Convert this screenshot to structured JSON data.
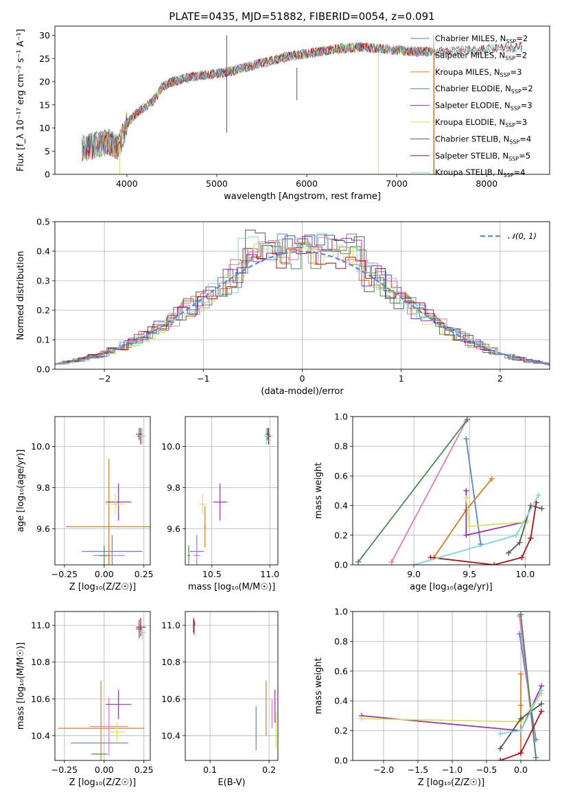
{
  "title": "PLATE=0435, MJD=51882, FIBERID=0054, z=0.091",
  "colors": {
    "chabrier_miles": "#5b7fd6",
    "salpeter_miles": "#e377c2",
    "kroupa_miles": "#e07a1f",
    "chabrier_elodie": "#4e8a55",
    "salpeter_elodie": "#9b2fae",
    "kroupa_elodie": "#d7e35a",
    "chabrier_stelib": "#555555",
    "salpeter_stelib": "#b20f16",
    "kroupa_stelib": "#7dd6d8",
    "gauss": "#5b8ad8"
  },
  "chart_data": [
    {
      "id": "spectrum",
      "type": "line",
      "xlabel": "wavelength [Angstrom, rest frame]",
      "ylabel": "Flux [f_λ 10⁻¹⁷ erg cm⁻² s⁻¹ A⁻¹]",
      "xlim": [
        3200,
        8700
      ],
      "ylim": [
        0,
        32
      ],
      "xticks": [
        "4000",
        "5000",
        "6000",
        "7000",
        "8000"
      ],
      "yticks": [
        "0",
        "5",
        "10",
        "15",
        "20",
        "25",
        "30"
      ],
      "legend_position": "top-right",
      "legend": [
        {
          "text": "Chabrier MILES, N",
          "sub": "SSP",
          "suffix": "=2"
        },
        {
          "text": "Salpeter MILES, N",
          "sub": "SSP",
          "suffix": "=2"
        },
        {
          "text": "Kroupa MILES, N",
          "sub": "SSP",
          "suffix": "=3"
        },
        {
          "text": "Chabrier ELODIE, N",
          "sub": "SSP",
          "suffix": "=2"
        },
        {
          "text": "Salpeter ELODIE, N",
          "sub": "SSP",
          "suffix": "=3"
        },
        {
          "text": "Kroupa ELODIE, N",
          "sub": "SSP",
          "suffix": "=3"
        },
        {
          "text": "Chabrier STELIB, N",
          "sub": "SSP",
          "suffix": "=4"
        },
        {
          "text": "Salpeter STELIB, N",
          "sub": "SSP",
          "suffix": "=5"
        },
        {
          "text": "Kroupa STELIB, N",
          "sub": "SSP",
          "suffix": "=4"
        }
      ],
      "continuum": {
        "x": [
          3500,
          3600,
          3700,
          3800,
          3900,
          3950,
          4000,
          4100,
          4200,
          4300,
          4400,
          4500,
          4700,
          4900,
          5100,
          5300,
          5500,
          5800,
          6000,
          6300,
          6600,
          6900,
          7200,
          7400,
          7600,
          8000,
          8400
        ],
        "y": [
          5.5,
          6,
          6.5,
          7,
          5.5,
          8,
          11,
          13,
          14.5,
          16,
          19,
          20,
          21,
          21.5,
          22,
          23,
          24,
          25.5,
          26,
          27,
          27.5,
          27,
          26.5,
          26.5,
          26.5,
          27,
          27.5
        ]
      }
    },
    {
      "id": "residuals",
      "type": "histogram",
      "xlabel": "(data-model)/error",
      "ylabel": "Normed distribution",
      "xlim": [
        -2.5,
        2.5
      ],
      "ylim": [
        0,
        0.5
      ],
      "xticks": [
        "−2",
        "−1",
        "0",
        "1",
        "2"
      ],
      "yticks": [
        "0.0",
        "0.1",
        "0.2",
        "0.3",
        "0.4",
        "0.5"
      ],
      "legend_position": "top-right",
      "gauss_label": "𝒩(0, 1)",
      "bin_width": 0.1,
      "peak_values": [
        0.46,
        0.45,
        0.44,
        0.42,
        0.45,
        0.43,
        0.48,
        0.4,
        0.47
      ]
    },
    {
      "id": "age_vs_Z",
      "type": "scatter",
      "xlabel": "Z [log₁₀(Z/Z☉)]",
      "ylabel": "age  [log₁₀(age/yr)]",
      "xlim": [
        -0.31,
        0.29
      ],
      "ylim": [
        9.425,
        10.145
      ],
      "xticks": [
        "−0.25",
        "0.00",
        "0.25"
      ],
      "yticks": [
        "9.6",
        "9.8",
        "10.0"
      ],
      "points": [
        {
          "series": "chabrier_miles",
          "x": 0.05,
          "y": 9.49,
          "xerr": 0.19,
          "yerr": 0.08
        },
        {
          "series": "salpeter_miles",
          "x": 0.03,
          "y": 9.47,
          "xerr": 0.1,
          "yerr": 0.05
        },
        {
          "series": "kroupa_miles",
          "x": 0.03,
          "y": 9.61,
          "xerr": 0.27,
          "yerr": 0.33
        },
        {
          "series": "chabrier_elodie",
          "x": 0.0,
          "y": 9.47,
          "xerr": 0.03,
          "yerr": 0.05
        },
        {
          "series": "salpeter_elodie",
          "x": 0.09,
          "y": 9.73,
          "xerr": 0.08,
          "yerr": 0.09
        },
        {
          "series": "kroupa_elodie",
          "x": 0.07,
          "y": 9.72,
          "xerr": 0.06,
          "yerr": 0.05
        },
        {
          "series": "chabrier_stelib",
          "x": 0.22,
          "y": 10.06,
          "xerr": 0.02,
          "yerr": 0.03
        },
        {
          "series": "salpeter_stelib",
          "x": 0.23,
          "y": 10.05,
          "xerr": 0.02,
          "yerr": 0.04
        },
        {
          "series": "kroupa_stelib",
          "x": 0.24,
          "y": 10.05,
          "xerr": 0.02,
          "yerr": 0.04
        }
      ]
    },
    {
      "id": "age_vs_mass",
      "type": "scatter",
      "xlabel": "mass [log₁₀(M/M☉)]",
      "ylabel": "",
      "xlim": [
        10.27,
        11.07
      ],
      "ylim": [
        9.425,
        10.145
      ],
      "xticks": [
        "10.5",
        "11.0"
      ],
      "yticks": [
        "9.6",
        "9.8",
        "10.0"
      ],
      "points": [
        {
          "series": "chabrier_miles",
          "x": 10.37,
          "y": 9.49,
          "xerr": 0.06,
          "yerr": 0.08
        },
        {
          "series": "salpeter_miles",
          "x": 10.37,
          "y": 9.47,
          "xerr": 0.03,
          "yerr": 0.05
        },
        {
          "series": "kroupa_miles",
          "x": 10.44,
          "y": 9.61,
          "xerr": 0.01,
          "yerr": 0.1
        },
        {
          "series": "chabrier_elodie",
          "x": 10.3,
          "y": 9.47,
          "xerr": 0.01,
          "yerr": 0.05
        },
        {
          "series": "salpeter_elodie",
          "x": 10.57,
          "y": 9.73,
          "xerr": 0.06,
          "yerr": 0.09
        },
        {
          "series": "kroupa_elodie",
          "x": 10.42,
          "y": 9.72,
          "xerr": 0.03,
          "yerr": 0.05
        },
        {
          "series": "chabrier_stelib",
          "x": 10.98,
          "y": 10.06,
          "xerr": 0.02,
          "yerr": 0.03
        },
        {
          "series": "salpeter_stelib",
          "x": 10.99,
          "y": 10.05,
          "xerr": 0.02,
          "yerr": 0.04
        },
        {
          "series": "kroupa_stelib",
          "x": 10.97,
          "y": 10.05,
          "xerr": 0.02,
          "yerr": 0.04
        }
      ]
    },
    {
      "id": "weight_vs_age",
      "type": "line",
      "xlabel": "age  [log₁₀(age/yr)]",
      "ylabel": "mass weight",
      "xlim": [
        8.45,
        10.22
      ],
      "ylim": [
        0,
        1.0
      ],
      "xticks": [
        "9.0",
        "9.5",
        "10.0"
      ],
      "yticks": [
        "0.0",
        "0.2",
        "0.4",
        "0.6",
        "0.8",
        "1.0"
      ],
      "series": [
        {
          "name": "chabrier_miles",
          "x": [
            9.47,
            9.6
          ],
          "y": [
            0.85,
            0.14
          ]
        },
        {
          "name": "salpeter_miles",
          "x": [
            8.8,
            9.47
          ],
          "y": [
            0.02,
            0.97
          ]
        },
        {
          "name": "kroupa_miles",
          "x": [
            9.18,
            9.47,
            9.7
          ],
          "y": [
            0.05,
            0.37,
            0.58
          ]
        },
        {
          "name": "chabrier_elodie",
          "x": [
            8.5,
            9.48
          ],
          "y": [
            0.02,
            0.98
          ]
        },
        {
          "name": "salpeter_elodie",
          "x": [
            9.47,
            9.47,
            10.0
          ],
          "y": [
            0.5,
            0.2,
            0.29
          ]
        },
        {
          "name": "kroupa_elodie",
          "x": [
            9.47,
            9.5,
            10.02
          ],
          "y": [
            0.45,
            0.26,
            0.29
          ]
        },
        {
          "name": "chabrier_stelib",
          "x": [
            9.85,
            9.95,
            10.05,
            10.15
          ],
          "y": [
            0.08,
            0.15,
            0.4,
            0.38
          ]
        },
        {
          "name": "salpeter_stelib",
          "x": [
            9.15,
            9.72,
            9.97,
            10.05,
            10.1
          ],
          "y": [
            0.05,
            0.0,
            0.05,
            0.18,
            0.42
          ]
        },
        {
          "name": "kroupa_stelib",
          "x": [
            9.0,
            9.92,
            10.12
          ],
          "y": [
            0.0,
            0.2,
            0.47
          ]
        }
      ]
    },
    {
      "id": "mass_vs_Z",
      "type": "scatter",
      "xlabel": "Z [log₁₀(Z/Z☉)]",
      "ylabel": "mass [log₁₀(M/M☉)]",
      "xlim": [
        -0.31,
        0.29
      ],
      "ylim": [
        10.265,
        11.075
      ],
      "xticks": [
        "−0.25",
        "0.00",
        "0.25"
      ],
      "yticks": [
        "10.4",
        "10.6",
        "10.8",
        "11.0"
      ],
      "points": [
        {
          "series": "chabrier_miles",
          "x": -0.03,
          "y": 10.36,
          "xerr": 0.18,
          "yerr": 0.0
        },
        {
          "series": "salpeter_miles",
          "x": 0.03,
          "y": 10.45,
          "xerr": 0.12,
          "yerr": 0.16
        },
        {
          "series": "kroupa_miles",
          "x": -0.02,
          "y": 10.44,
          "xerr": 0.27,
          "yerr": 0.26
        },
        {
          "series": "chabrier_elodie",
          "x": -0.03,
          "y": 10.3,
          "xerr": 0.05,
          "yerr": 0.0
        },
        {
          "series": "salpeter_elodie",
          "x": 0.09,
          "y": 10.57,
          "xerr": 0.08,
          "yerr": 0.08
        },
        {
          "series": "kroupa_elodie",
          "x": 0.08,
          "y": 10.42,
          "xerr": 0.05,
          "yerr": 0.05
        },
        {
          "series": "chabrier_stelib",
          "x": 0.22,
          "y": 10.98,
          "xerr": 0.02,
          "yerr": 0.05
        },
        {
          "series": "salpeter_stelib",
          "x": 0.23,
          "y": 10.99,
          "xerr": 0.03,
          "yerr": 0.05
        },
        {
          "series": "kroupa_stelib",
          "x": 0.24,
          "y": 10.96,
          "xerr": 0.02,
          "yerr": 0.04
        }
      ]
    },
    {
      "id": "mass_vs_ebv",
      "type": "scatter",
      "xlabel": "E(B-V)",
      "ylabel": "",
      "xlim": [
        0.058,
        0.215
      ],
      "ylim": [
        10.265,
        11.075
      ],
      "xticks": [
        "0.1",
        "0.2"
      ],
      "yticks": [
        "10.4",
        "10.6",
        "10.8",
        "11.0"
      ],
      "points": [
        {
          "series": "chabrier_miles",
          "x": 0.178,
          "y": 10.44,
          "xerr": 0.0,
          "yerr": 0.12
        },
        {
          "series": "salpeter_miles",
          "x": 0.205,
          "y": 10.52,
          "xerr": 0.0,
          "yerr": 0.08
        },
        {
          "series": "kroupa_miles",
          "x": 0.195,
          "y": 10.55,
          "xerr": 0.0,
          "yerr": 0.15
        },
        {
          "series": "chabrier_elodie",
          "x": 0.074,
          "y": 11.0,
          "xerr": 0.0,
          "yerr": 0.02
        },
        {
          "series": "salpeter_elodie",
          "x": 0.21,
          "y": 10.56,
          "xerr": 0.0,
          "yerr": 0.09
        },
        {
          "series": "kroupa_elodie",
          "x": 0.212,
          "y": 10.43,
          "xerr": 0.0,
          "yerr": 0.1
        },
        {
          "series": "chabrier_stelib",
          "x": 0.073,
          "y": 10.99,
          "xerr": 0.0,
          "yerr": 0.04
        },
        {
          "series": "salpeter_stelib",
          "x": 0.072,
          "y": 11.0,
          "xerr": 0.0,
          "yerr": 0.04
        },
        {
          "series": "kroupa_stelib",
          "x": 0.074,
          "y": 10.97,
          "xerr": 0.0,
          "yerr": 0.03
        }
      ]
    },
    {
      "id": "weight_vs_Z",
      "type": "line",
      "xlabel": "Z [log₁₀(Z/Z☉)]",
      "ylabel": "mass weight",
      "xlim": [
        -2.45,
        0.42
      ],
      "ylim": [
        0,
        1.0
      ],
      "xticks": [
        "−2.0",
        "−1.5",
        "−1.0",
        "−0.5",
        "0.0"
      ],
      "yticks": [
        "0.0",
        "0.2",
        "0.4",
        "0.6",
        "0.8",
        "1.0"
      ],
      "series": [
        {
          "name": "chabrier_miles",
          "x": [
            -0.02,
            0.22
          ],
          "y": [
            0.85,
            0.14
          ]
        },
        {
          "name": "salpeter_miles",
          "x": [
            -0.02,
            0.22
          ],
          "y": [
            0.97,
            0.02
          ]
        },
        {
          "name": "kroupa_miles",
          "x": [
            0.0,
            0.0,
            0.0
          ],
          "y": [
            0.58,
            0.37,
            0.05
          ]
        },
        {
          "name": "chabrier_elodie",
          "x": [
            0.0,
            0.22
          ],
          "y": [
            0.98,
            0.02
          ]
        },
        {
          "name": "salpeter_elodie",
          "x": [
            -2.32,
            0.0,
            0.3
          ],
          "y": [
            0.3,
            0.2,
            0.5
          ]
        },
        {
          "name": "kroupa_elodie",
          "x": [
            -2.32,
            0.0,
            0.3
          ],
          "y": [
            0.28,
            0.26,
            0.45
          ]
        },
        {
          "name": "chabrier_stelib",
          "x": [
            -0.3,
            0.0,
            0.3
          ],
          "y": [
            0.08,
            0.28,
            0.38
          ]
        },
        {
          "name": "salpeter_stelib",
          "x": [
            -0.3,
            0.0,
            0.3
          ],
          "y": [
            0.0,
            0.05,
            0.33
          ]
        },
        {
          "name": "kroupa_stelib",
          "x": [
            -0.3,
            0.0,
            0.3
          ],
          "y": [
            0.18,
            0.2,
            0.47
          ]
        }
      ]
    }
  ]
}
